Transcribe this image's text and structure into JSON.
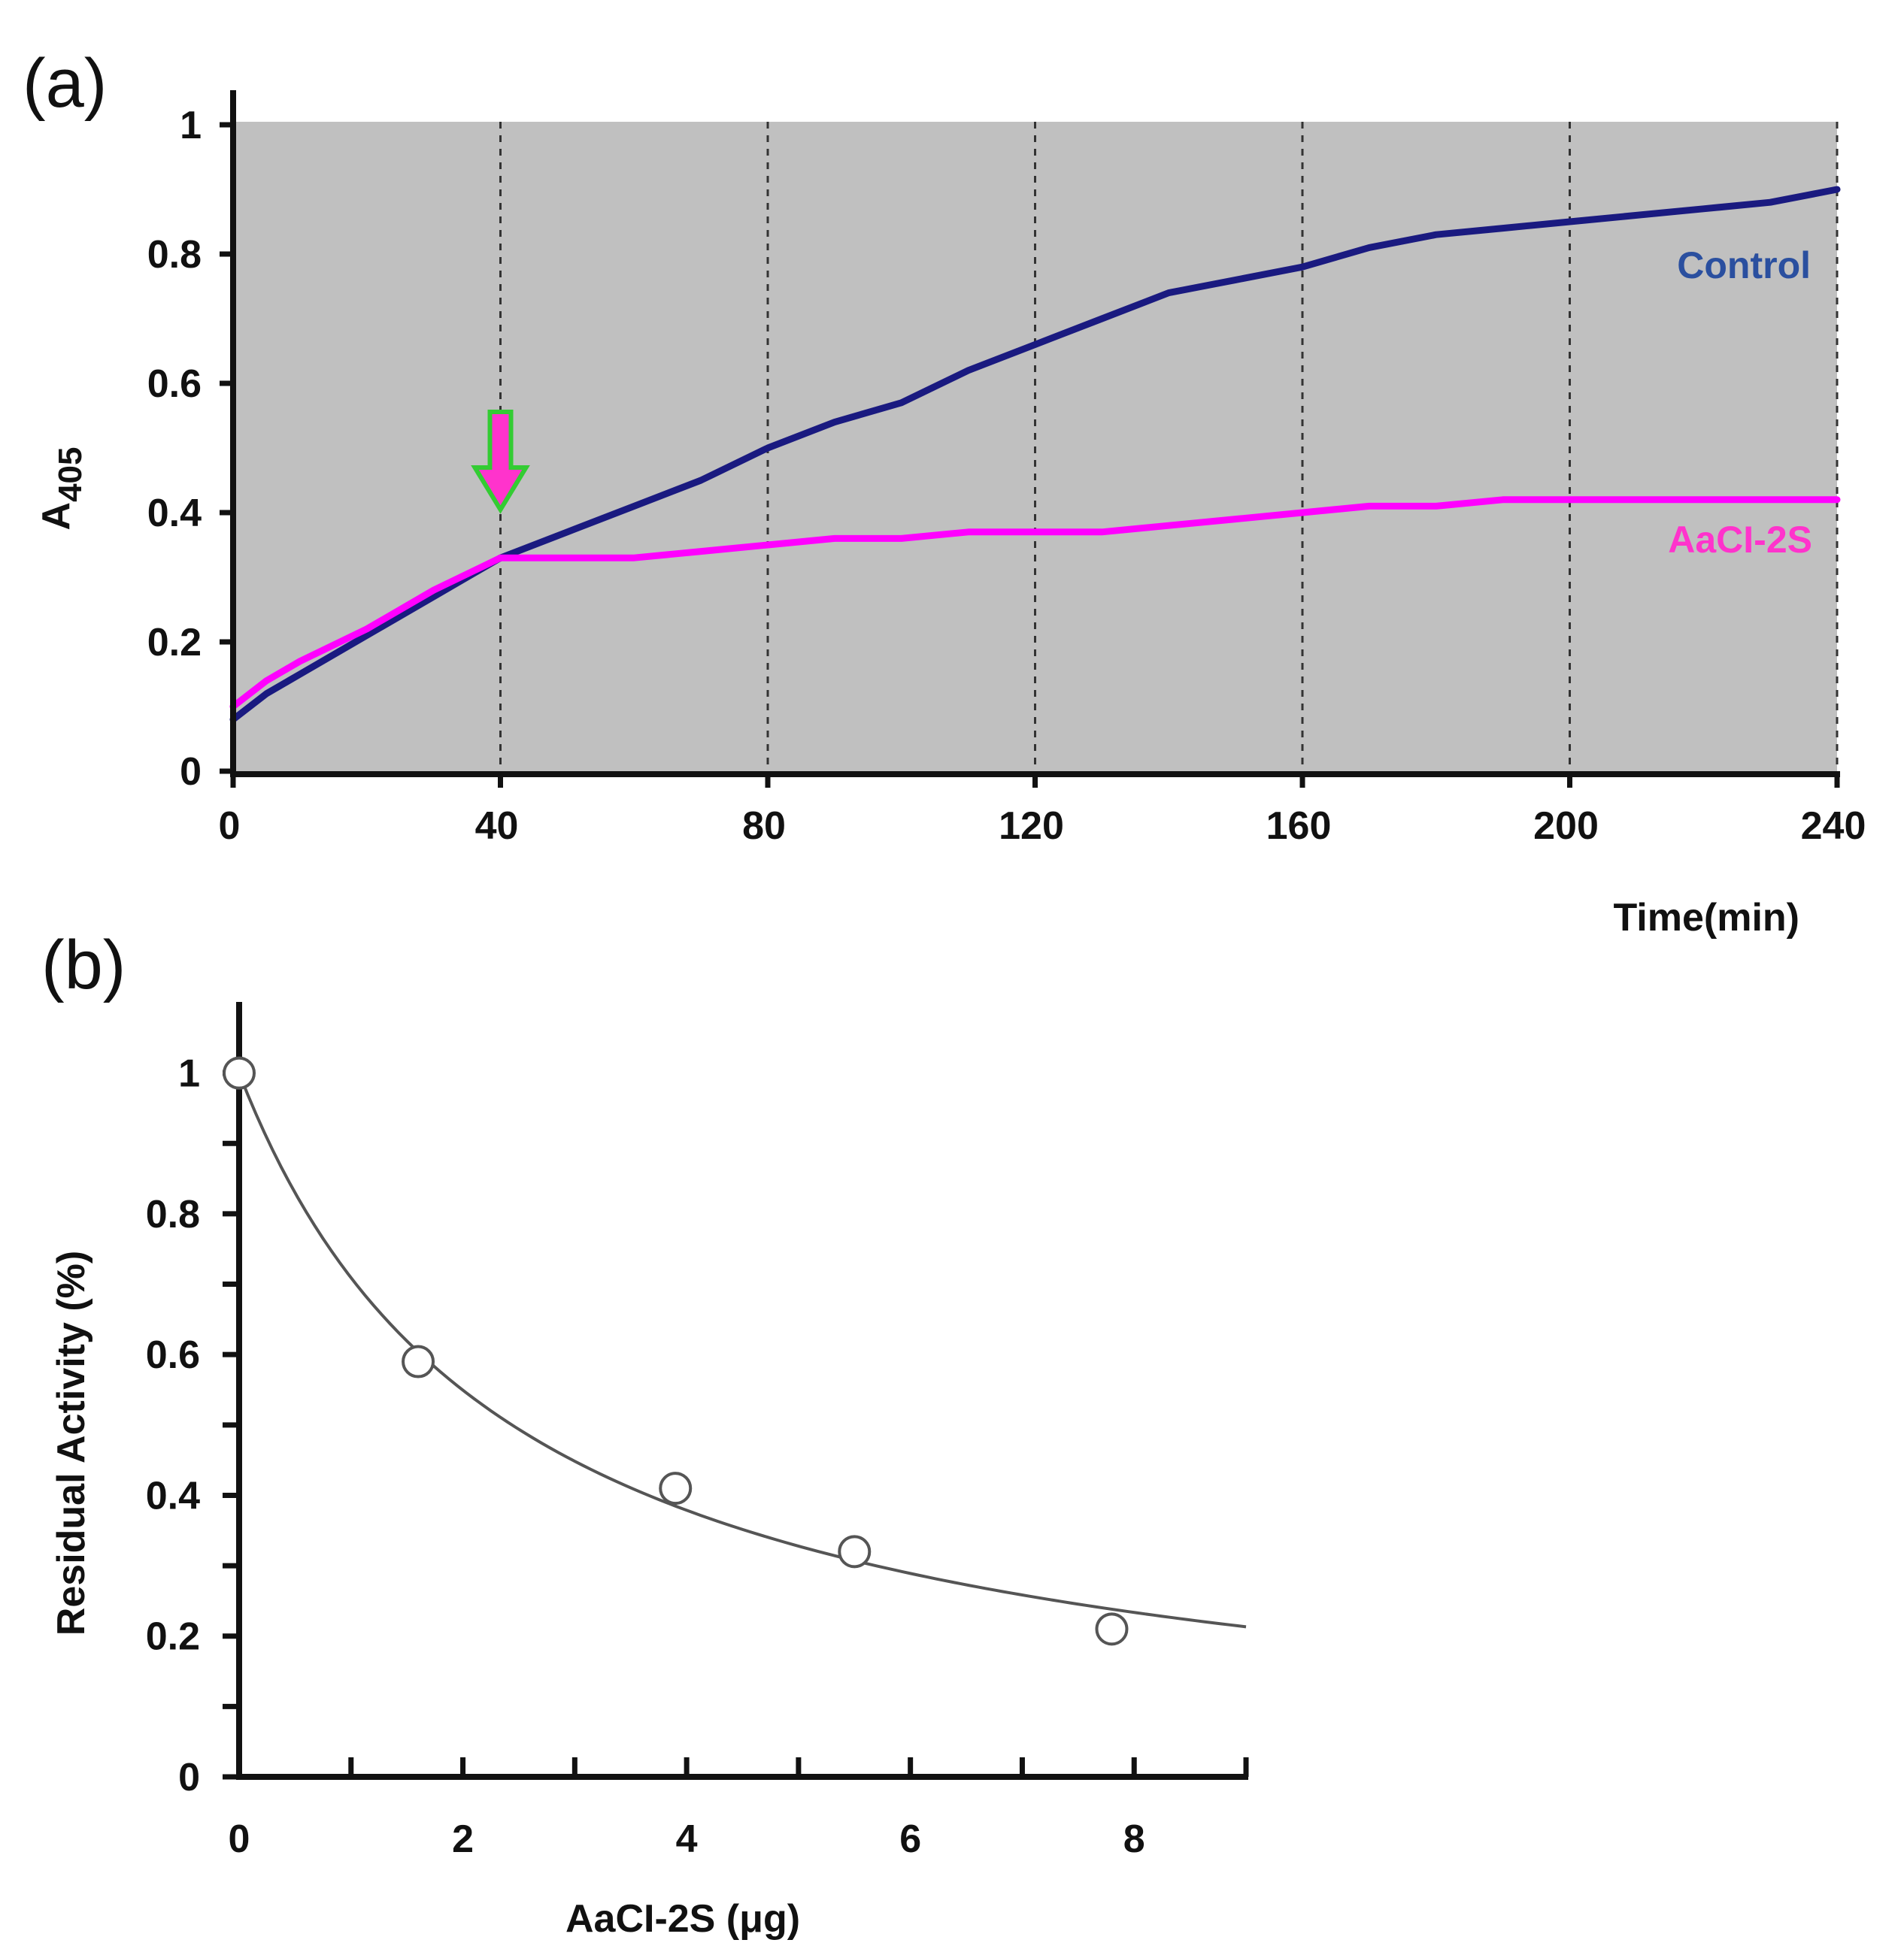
{
  "chart_data": [
    {
      "panel": "(a)",
      "type": "line",
      "ylabel": "A",
      "ylabel_sub": "405",
      "xlabel": "Time(min)",
      "xlim": [
        0,
        240
      ],
      "ylim": [
        0,
        1
      ],
      "xticks": [
        0,
        40,
        80,
        120,
        160,
        200,
        240
      ],
      "yticks": [
        0,
        0.2,
        0.4,
        0.6,
        0.8,
        1
      ],
      "ytick_labels": [
        "0",
        "0.2",
        "0.4",
        "0.6",
        "0.8",
        "1"
      ],
      "grid": "vertical dashed at each x tick",
      "background": "#c0c0c0",
      "annotation": {
        "type": "down-arrow",
        "x": 40,
        "y": 0.4,
        "fill": "#ff33cc",
        "stroke": "#33cc33"
      },
      "series": [
        {
          "name": "Control",
          "color": "#1a1a80",
          "label_color": "#2a4f9f",
          "x": [
            0,
            5,
            10,
            20,
            30,
            40,
            50,
            60,
            70,
            80,
            90,
            100,
            110,
            120,
            130,
            140,
            150,
            160,
            170,
            180,
            190,
            200,
            210,
            220,
            230,
            240
          ],
          "y": [
            0.08,
            0.12,
            0.15,
            0.21,
            0.27,
            0.33,
            0.37,
            0.41,
            0.45,
            0.5,
            0.54,
            0.57,
            0.62,
            0.66,
            0.7,
            0.74,
            0.76,
            0.78,
            0.81,
            0.83,
            0.84,
            0.85,
            0.86,
            0.87,
            0.88,
            0.9
          ]
        },
        {
          "name": "AaCI-2S",
          "color": "#ff00ff",
          "label_color": "#ff33cc",
          "x": [
            0,
            5,
            10,
            20,
            30,
            40,
            50,
            60,
            70,
            80,
            90,
            100,
            110,
            120,
            130,
            140,
            150,
            160,
            170,
            180,
            190,
            200,
            210,
            220,
            230,
            240
          ],
          "y": [
            0.1,
            0.14,
            0.17,
            0.22,
            0.28,
            0.33,
            0.33,
            0.33,
            0.34,
            0.35,
            0.36,
            0.36,
            0.37,
            0.37,
            0.37,
            0.38,
            0.39,
            0.4,
            0.41,
            0.41,
            0.42,
            0.42,
            0.42,
            0.42,
            0.42,
            0.42
          ]
        }
      ]
    },
    {
      "panel": "(b)",
      "type": "scatter",
      "xlabel": "AaCI-2S (μg)",
      "ylabel": "Residual Activity (%)",
      "xlim": [
        0,
        9
      ],
      "ylim": [
        0,
        1.1
      ],
      "xticks": [
        0,
        2,
        4,
        6,
        8
      ],
      "xticks_minor": [
        1,
        3,
        5,
        7,
        9
      ],
      "yticks": [
        0,
        0.2,
        0.4,
        0.6,
        0.8,
        1
      ],
      "yticks_minor": [
        0.1,
        0.3,
        0.5,
        0.7,
        0.9
      ],
      "ytick_labels": [
        "0",
        "0.2",
        "0.4",
        "0.6",
        "0.8",
        "1"
      ],
      "points": {
        "x": [
          0,
          1.6,
          3.9,
          5.5,
          7.8
        ],
        "y": [
          1.0,
          0.59,
          0.41,
          0.32,
          0.21
        ]
      },
      "fit": {
        "model": "hyperbolic decay y = 1/(1 + k*x)",
        "k": 0.41,
        "x_range": [
          0,
          9
        ],
        "color": "#555555"
      }
    }
  ]
}
